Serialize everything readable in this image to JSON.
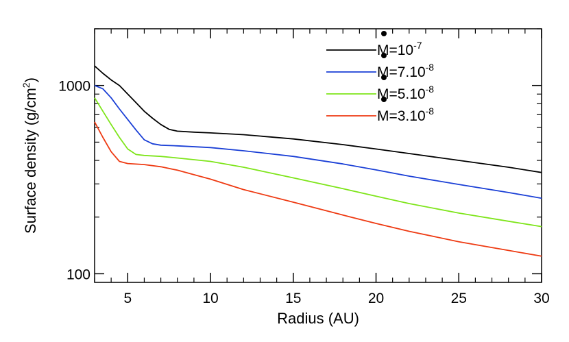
{
  "chart_data": {
    "type": "line",
    "title": "",
    "xlabel": "Radius (AU)",
    "ylabel_main": "Surface density (g/cm",
    "ylabel_sup": "2",
    "ylabel_close": ")",
    "xlim": [
      3,
      30
    ],
    "ylim": [
      90,
      2000
    ],
    "yscale": "log",
    "grid": false,
    "legend_position": "top-right",
    "x_ticks": [
      5,
      10,
      15,
      20,
      25,
      30
    ],
    "x_tick_labels": [
      "5",
      "10",
      "15",
      "20",
      "25",
      "30"
    ],
    "y_major_ticks": [
      100,
      1000
    ],
    "y_major_tick_labels": [
      "100",
      "1000"
    ],
    "y_minor_ticks": [
      200,
      300,
      400,
      500,
      600,
      700,
      800,
      900,
      2000
    ],
    "series": [
      {
        "name": "M=10-7",
        "legend_main": "M=10",
        "legend_sup": "-7",
        "color": "#000000",
        "points": [
          [
            3,
            1270
          ],
          [
            3.5,
            1160
          ],
          [
            4,
            1070
          ],
          [
            4.5,
            1000
          ],
          [
            5,
            900
          ],
          [
            5.5,
            810
          ],
          [
            6,
            730
          ],
          [
            6.5,
            670
          ],
          [
            7,
            620
          ],
          [
            7.5,
            585
          ],
          [
            8,
            572
          ],
          [
            9,
            565
          ],
          [
            10,
            560
          ],
          [
            12,
            548
          ],
          [
            15,
            520
          ],
          [
            18,
            485
          ],
          [
            20,
            460
          ],
          [
            22,
            435
          ],
          [
            25,
            400
          ],
          [
            28,
            368
          ],
          [
            30,
            345
          ]
        ]
      },
      {
        "name": "M=7.10-8",
        "legend_main": "M=7.10",
        "legend_sup": "-8",
        "color": "#1a3fd6",
        "points": [
          [
            3,
            1000
          ],
          [
            3.5,
            960
          ],
          [
            4,
            860
          ],
          [
            4.5,
            750
          ],
          [
            5,
            660
          ],
          [
            5.5,
            580
          ],
          [
            6,
            515
          ],
          [
            6.5,
            490
          ],
          [
            7,
            482
          ],
          [
            8,
            478
          ],
          [
            10,
            468
          ],
          [
            12,
            450
          ],
          [
            15,
            420
          ],
          [
            18,
            383
          ],
          [
            20,
            356
          ],
          [
            22,
            330
          ],
          [
            25,
            298
          ],
          [
            28,
            270
          ],
          [
            30,
            252
          ]
        ]
      },
      {
        "name": "M=5.10-8",
        "legend_main": "M=5.10",
        "legend_sup": "-8",
        "color": "#7ee51a",
        "points": [
          [
            3,
            860
          ],
          [
            3.5,
            730
          ],
          [
            4,
            620
          ],
          [
            4.5,
            530
          ],
          [
            5,
            460
          ],
          [
            5.5,
            430
          ],
          [
            6,
            425
          ],
          [
            7,
            420
          ],
          [
            8,
            412
          ],
          [
            10,
            395
          ],
          [
            12,
            368
          ],
          [
            15,
            323
          ],
          [
            18,
            283
          ],
          [
            20,
            258
          ],
          [
            22,
            236
          ],
          [
            25,
            210
          ],
          [
            28,
            190
          ],
          [
            30,
            178
          ]
        ]
      },
      {
        "name": "M=3.10-8",
        "legend_main": "M=3.10",
        "legend_sup": "-8",
        "color": "#ee3a12",
        "points": [
          [
            3,
            640
          ],
          [
            3.5,
            530
          ],
          [
            4,
            445
          ],
          [
            4.5,
            395
          ],
          [
            5,
            385
          ],
          [
            6,
            380
          ],
          [
            7,
            370
          ],
          [
            8,
            355
          ],
          [
            10,
            318
          ],
          [
            12,
            280
          ],
          [
            15,
            240
          ],
          [
            18,
            205
          ],
          [
            20,
            185
          ],
          [
            22,
            168
          ],
          [
            25,
            148
          ],
          [
            28,
            133
          ],
          [
            30,
            124
          ]
        ]
      }
    ]
  }
}
